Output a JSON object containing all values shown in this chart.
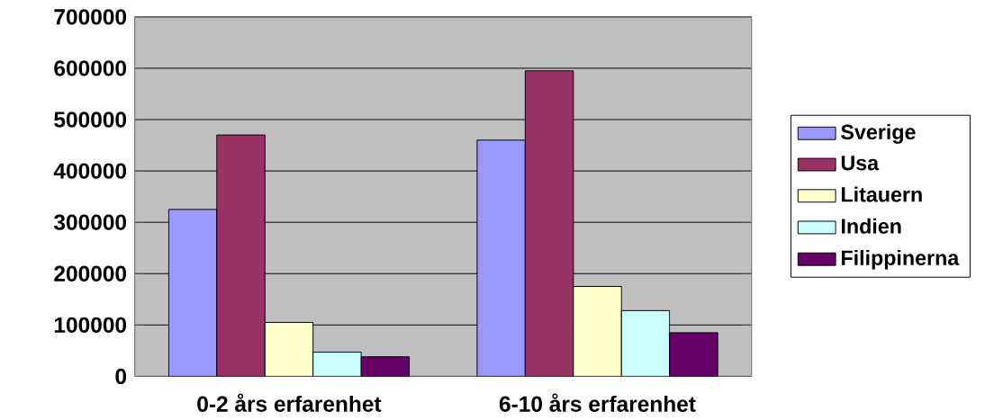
{
  "chart_data": {
    "type": "bar",
    "categories": [
      "0-2 års erfarenhet",
      "6-10 års erfarenhet"
    ],
    "series": [
      {
        "name": "Sverige",
        "color": "#9999ff",
        "values": [
          325000,
          460000
        ]
      },
      {
        "name": "Usa",
        "color": "#993366",
        "values": [
          470000,
          595000
        ]
      },
      {
        "name": "Litauern",
        "color": "#ffffcc",
        "values": [
          105000,
          175000
        ]
      },
      {
        "name": "Indien",
        "color": "#ccffff",
        "values": [
          47000,
          128000
        ]
      },
      {
        "name": "Filippinerna",
        "color": "#660066",
        "values": [
          38000,
          85000
        ]
      }
    ],
    "ylim": [
      0,
      700000
    ],
    "yticks": [
      0,
      100000,
      200000,
      300000,
      400000,
      500000,
      600000,
      700000
    ],
    "grid": "y",
    "legend": "right"
  }
}
